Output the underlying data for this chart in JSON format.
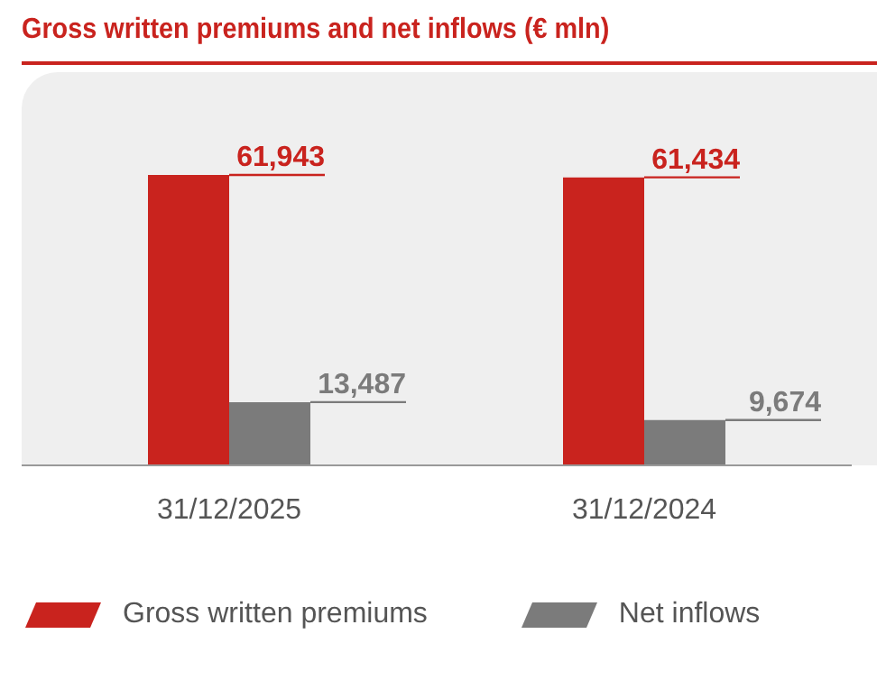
{
  "chart_data": {
    "type": "bar",
    "title": "Gross written premiums and net inflows (€ mln)",
    "categories": [
      "31/12/2025",
      "31/12/2024"
    ],
    "series": [
      {
        "name": "Gross written premiums",
        "color": "#c9231e",
        "values": [
          61943,
          61434
        ],
        "value_labels": [
          "61,943",
          "61,434"
        ]
      },
      {
        "name": "Net inflows",
        "color": "#7b7b7b",
        "values": [
          13487,
          9674
        ],
        "value_labels": [
          "13,487",
          "9,674"
        ]
      }
    ],
    "legend": "bottom"
  }
}
